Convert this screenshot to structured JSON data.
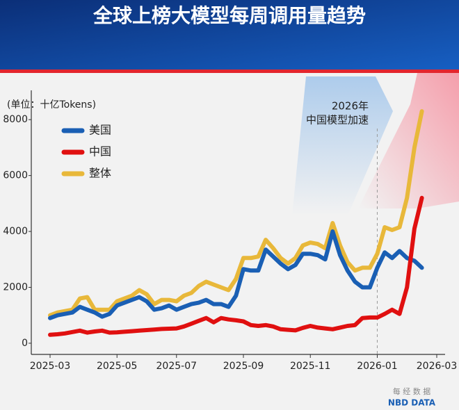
{
  "chart_data": {
    "type": "line",
    "title": "全球上榜大模型每周调用量趋势",
    "y_label": "(单位：十亿Tokens)",
    "annotation": [
      "2026年",
      "中国模型加速"
    ],
    "watermark": [
      "每 经 数 据",
      "NBD DATA"
    ],
    "categories": [
      "2025-03",
      null,
      null,
      null,
      null,
      null,
      null,
      null,
      null,
      "2025-05",
      null,
      null,
      null,
      null,
      null,
      null,
      null,
      "2025-07",
      null,
      null,
      null,
      null,
      null,
      null,
      null,
      null,
      "2025-09",
      null,
      null,
      null,
      null,
      null,
      null,
      null,
      null,
      "2025-11",
      null,
      null,
      null,
      null,
      null,
      null,
      null,
      null,
      "2026-01",
      null,
      null,
      null,
      null,
      null,
      null,
      null,
      "2026-03"
    ],
    "ylim": [
      -400,
      8800
    ],
    "yticks": [
      0,
      2000,
      4000,
      6000,
      8000
    ],
    "grid": false,
    "legend": "top-left",
    "series": [
      {
        "name": "美国",
        "color": "#1a5fb4",
        "values": [
          900,
          1000,
          1050,
          1100,
          1300,
          1200,
          1100,
          950,
          1050,
          1350,
          1450,
          1550,
          1650,
          1500,
          1200,
          1250,
          1350,
          1200,
          1300,
          1400,
          1450,
          1550,
          1400,
          1400,
          1300,
          1700,
          2650,
          2600,
          2600,
          3350,
          3100,
          2850,
          2650,
          2800,
          3200,
          3200,
          3150,
          3000,
          4000,
          3150,
          2600,
          2200,
          2000,
          2000,
          2700,
          3250,
          3050,
          3300,
          3050,
          2950,
          2700,
          null,
          null
        ]
      },
      {
        "name": "中国",
        "color": "#e01010",
        "values": [
          300,
          320,
          350,
          400,
          450,
          380,
          420,
          450,
          380,
          390,
          410,
          430,
          450,
          470,
          490,
          510,
          520,
          530,
          600,
          700,
          800,
          900,
          750,
          900,
          850,
          820,
          780,
          650,
          620,
          650,
          600,
          500,
          480,
          460,
          550,
          620,
          560,
          530,
          500,
          560,
          620,
          650,
          900,
          920,
          920,
          1050,
          1200,
          1050,
          2000,
          4100,
          5200,
          null,
          null
        ]
      },
      {
        "name": "整体",
        "color": "#e8b83a",
        "values": [
          1000,
          1100,
          1150,
          1200,
          1600,
          1650,
          1200,
          1200,
          1200,
          1500,
          1600,
          1700,
          1900,
          1750,
          1400,
          1550,
          1550,
          1500,
          1700,
          1800,
          2050,
          2200,
          2100,
          2000,
          1900,
          2300,
          3050,
          3050,
          3100,
          3700,
          3400,
          3050,
          2850,
          3050,
          3500,
          3600,
          3550,
          3400,
          4300,
          3500,
          2900,
          2600,
          2700,
          2700,
          3200,
          4150,
          4050,
          4150,
          5200,
          7000,
          8300,
          null,
          null
        ]
      }
    ]
  }
}
